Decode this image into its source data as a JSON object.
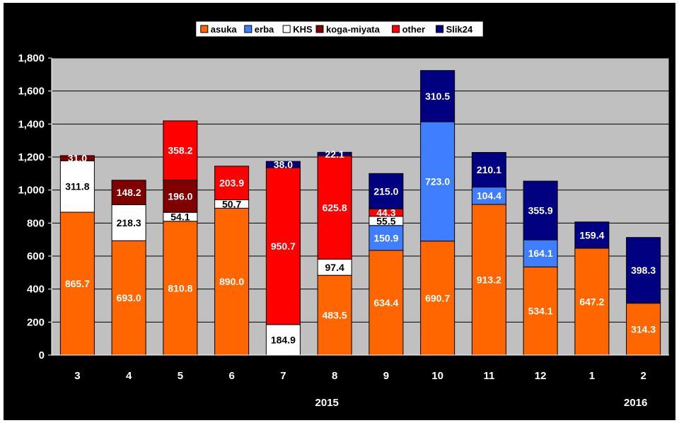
{
  "chart_data": {
    "type": "bar",
    "stacked": true,
    "categories": [
      "3",
      "4",
      "5",
      "6",
      "7",
      "8",
      "9",
      "10",
      "11",
      "12",
      "1",
      "2"
    ],
    "year_labels": [
      {
        "after_category": "7",
        "text": "2015"
      },
      {
        "after_category": "1",
        "text": "2016"
      }
    ],
    "ylim": [
      0,
      1800
    ],
    "yticks": [
      "0",
      "200",
      "400",
      "600",
      "800",
      "1,000",
      "1,200",
      "1,400",
      "1,600",
      "1,800"
    ],
    "grid": true,
    "legend_position": "top",
    "background": "#c0c0c0",
    "series": [
      {
        "name": "asuka",
        "color": "#ff6600",
        "values": [
          865.7,
          693.0,
          810.8,
          890.0,
          0,
          483.5,
          634.4,
          690.7,
          913.2,
          534.1,
          647.2,
          314.3
        ],
        "labels": [
          "865.7",
          "693.0",
          "810.8",
          "890.0",
          "",
          "483.5",
          "634.4",
          "690.7",
          "913.2",
          "534.1",
          "647.2",
          "314.3"
        ]
      },
      {
        "name": "erba",
        "color": "#3f7fff",
        "values": [
          0,
          0,
          0,
          0,
          0,
          0,
          150.9,
          723.0,
          104.4,
          164.1,
          0,
          0
        ],
        "labels": [
          "",
          "",
          "",
          "",
          "",
          "",
          "150.9",
          "723.0",
          "104.4",
          "164.1",
          "",
          ""
        ]
      },
      {
        "name": "KHS",
        "color": "#ffffff",
        "values": [
          311.8,
          218.3,
          54.1,
          50.7,
          184.9,
          97.4,
          55.5,
          0,
          0,
          0,
          0,
          0
        ],
        "labels": [
          "311.8",
          "218.3",
          "54.1",
          "50.7",
          "184.9",
          "97.4",
          "55.5",
          "",
          "",
          "",
          "",
          ""
        ]
      },
      {
        "name": "koga-miyata",
        "color": "#800000",
        "values": [
          31.0,
          148.2,
          196.0,
          0,
          0,
          0,
          0,
          0,
          0,
          0,
          0,
          0
        ],
        "labels": [
          "31.0",
          "148.2",
          "196.0",
          "",
          "",
          "",
          "",
          "",
          "",
          "",
          "",
          ""
        ]
      },
      {
        "name": "other",
        "color": "#ff0000",
        "values": [
          0,
          0,
          358.2,
          203.9,
          950.7,
          625.8,
          44.3,
          0,
          0,
          0,
          0,
          0
        ],
        "labels": [
          "",
          "",
          "358.2",
          "203.9",
          "950.7",
          "625.8",
          "44.3",
          "",
          "",
          "",
          "",
          ""
        ]
      },
      {
        "name": "Slik24",
        "color": "#000080",
        "values": [
          0,
          0,
          0,
          0,
          38.0,
          22.1,
          215.0,
          310.5,
          210.1,
          355.9,
          159.4,
          398.3
        ],
        "labels": [
          "",
          "",
          "",
          "",
          "38.0",
          "22.1",
          "215.0",
          "310.5",
          "210.1",
          "355.9",
          "159.4",
          "398.3"
        ]
      }
    ]
  }
}
